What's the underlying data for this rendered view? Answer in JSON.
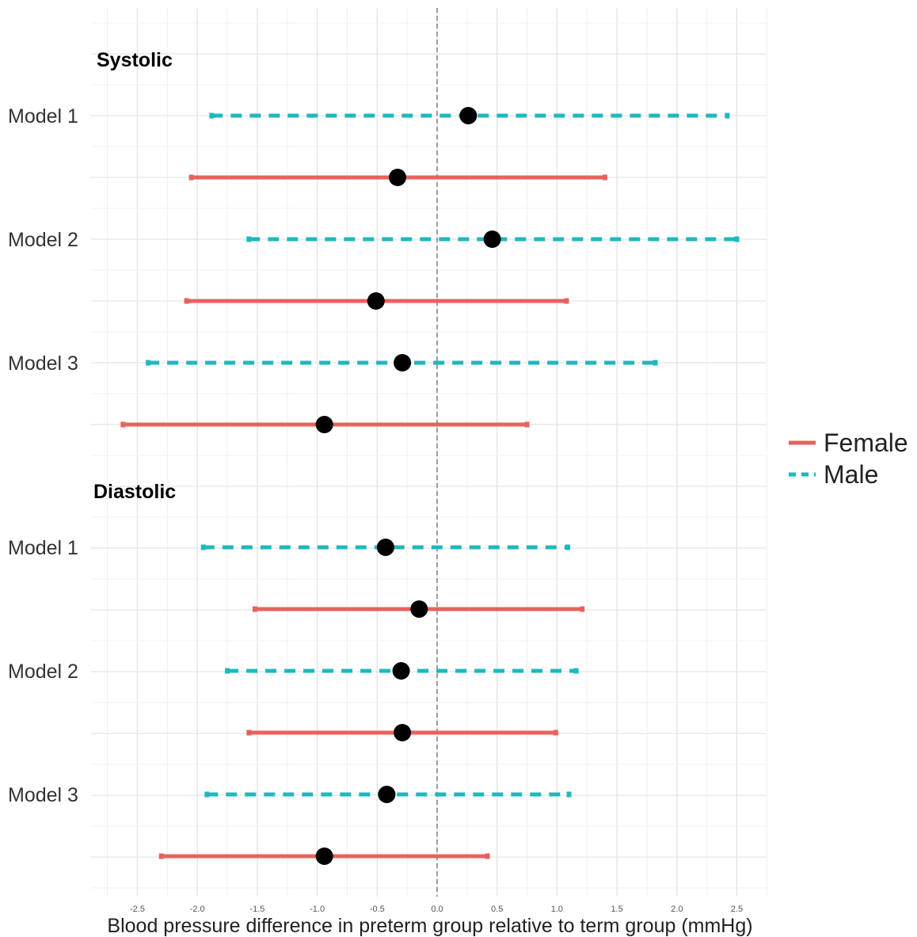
{
  "chart_data": {
    "type": "forest",
    "xlabel": "Blood pressure difference in preterm group relative to term group (mmHg)",
    "xlim": [
      -2.75,
      2.75
    ],
    "x_ticks": [
      -2.5,
      -2.0,
      -1.5,
      -1.0,
      -0.5,
      0.0,
      0.5,
      1.0,
      1.5,
      2.0,
      2.5
    ],
    "x_tick_labels": [
      "-2.5",
      "-2.0",
      "-1.5",
      "-1.0",
      "-0.5",
      "0.0",
      "0.5",
      "1.0",
      "1.5",
      "2.0",
      "2.5"
    ],
    "reference_line": 0,
    "grid": true,
    "legend": {
      "placement": "right",
      "entries": [
        {
          "name": "Female",
          "color": "#e8625d",
          "linestyle": "solid"
        },
        {
          "name": "Male",
          "color": "#1fb8be",
          "linestyle": "dashed"
        }
      ]
    },
    "panels": [
      {
        "title": "Systolic",
        "models": [
          {
            "label": "Model 1",
            "Male": {
              "estimate": 0.26,
              "lower": -1.88,
              "upper": 2.42
            },
            "Female": {
              "estimate": -0.33,
              "lower": -2.05,
              "upper": 1.4
            }
          },
          {
            "label": "Model 2",
            "Male": {
              "estimate": 0.46,
              "lower": -1.57,
              "upper": 2.5
            },
            "Female": {
              "estimate": -0.51,
              "lower": -2.09,
              "upper": 1.08
            }
          },
          {
            "label": "Model 3",
            "Male": {
              "estimate": -0.29,
              "lower": -2.41,
              "upper": 1.82
            },
            "Female": {
              "estimate": -0.94,
              "lower": -2.62,
              "upper": 0.75
            }
          }
        ]
      },
      {
        "title": "Diastolic",
        "models": [
          {
            "label": "Model 1",
            "Male": {
              "estimate": -0.43,
              "lower": -1.95,
              "upper": 1.09
            },
            "Female": {
              "estimate": -0.15,
              "lower": -1.52,
              "upper": 1.21
            }
          },
          {
            "label": "Model 2",
            "Male": {
              "estimate": -0.3,
              "lower": -1.75,
              "upper": 1.16
            },
            "Female": {
              "estimate": -0.29,
              "lower": -1.57,
              "upper": 0.99
            }
          },
          {
            "label": "Model 3",
            "Male": {
              "estimate": -0.42,
              "lower": -1.92,
              "upper": 1.1
            },
            "Female": {
              "estimate": -0.94,
              "lower": -2.3,
              "upper": 0.42
            }
          }
        ]
      }
    ]
  }
}
